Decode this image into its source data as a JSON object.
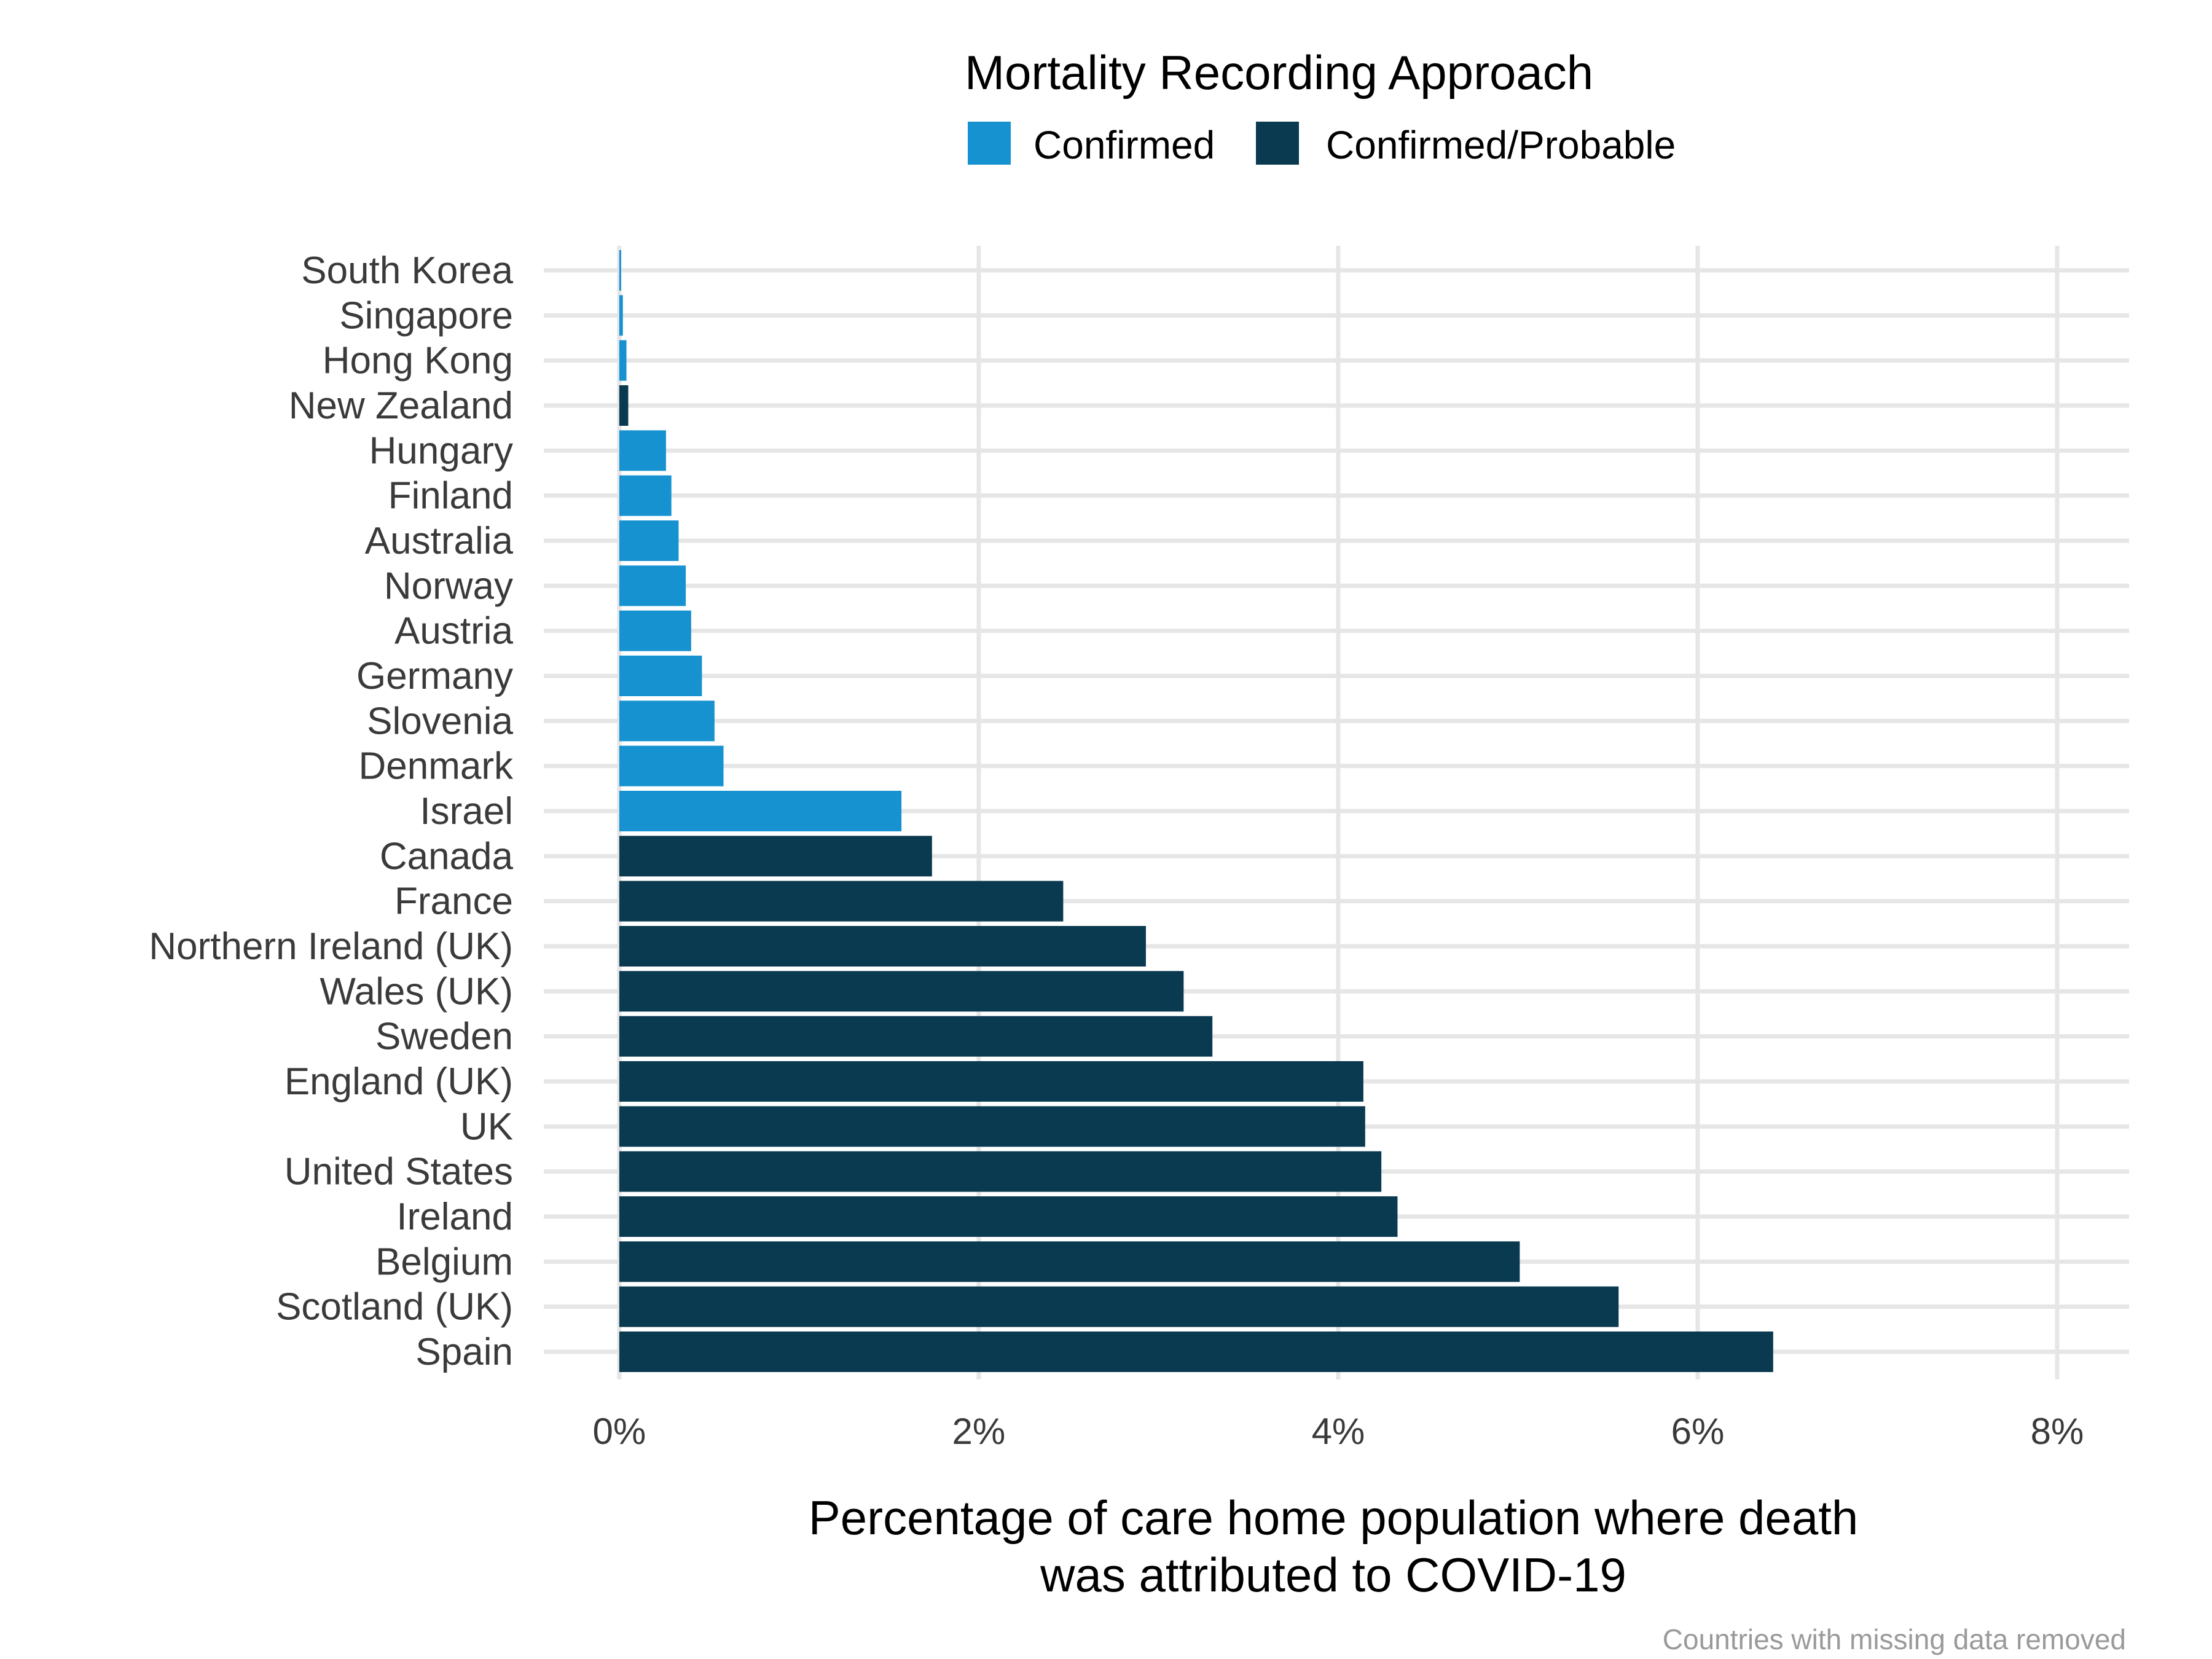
{
  "chart_data": {
    "type": "bar",
    "orientation": "horizontal",
    "legend_title": "Mortality Recording Approach",
    "legend_position": "top",
    "legend": [
      {
        "name": "Confirmed",
        "color": "#1692d0"
      },
      {
        "name": "Confirmed/Probable",
        "color": "#0a3a50"
      }
    ],
    "categories": [
      "South Korea",
      "Singapore",
      "Hong Kong",
      "New Zealand",
      "Hungary",
      "Finland",
      "Australia",
      "Norway",
      "Austria",
      "Germany",
      "Slovenia",
      "Denmark",
      "Israel",
      "Canada",
      "France",
      "Northern Ireland (UK)",
      "Wales (UK)",
      "Sweden",
      "England (UK)",
      "UK",
      "United States",
      "Ireland",
      "Belgium",
      "Scotland (UK)",
      "Spain"
    ],
    "values": [
      0.01,
      0.02,
      0.04,
      0.05,
      0.26,
      0.29,
      0.33,
      0.37,
      0.4,
      0.46,
      0.53,
      0.58,
      1.57,
      1.74,
      2.47,
      2.93,
      3.14,
      3.3,
      4.14,
      4.15,
      4.24,
      4.33,
      5.01,
      5.56,
      6.42
    ],
    "groups": [
      "Confirmed",
      "Confirmed",
      "Confirmed",
      "Confirmed/Probable",
      "Confirmed",
      "Confirmed",
      "Confirmed",
      "Confirmed",
      "Confirmed",
      "Confirmed",
      "Confirmed",
      "Confirmed",
      "Confirmed",
      "Confirmed/Probable",
      "Confirmed/Probable",
      "Confirmed/Probable",
      "Confirmed/Probable",
      "Confirmed/Probable",
      "Confirmed/Probable",
      "Confirmed/Probable",
      "Confirmed/Probable",
      "Confirmed/Probable",
      "Confirmed/Probable",
      "Confirmed/Probable",
      "Confirmed/Probable"
    ],
    "xticks": [
      0,
      2,
      4,
      6,
      8
    ],
    "xtick_labels": [
      "0%",
      "2%",
      "4%",
      "6%",
      "8%"
    ],
    "xlim": [
      -0.42,
      8.4
    ],
    "xlabel_line1": "Percentage of care home population where death",
    "xlabel_line2": "was attributed to COVID-19",
    "caption": "Countries with missing data removed",
    "grid": true
  }
}
